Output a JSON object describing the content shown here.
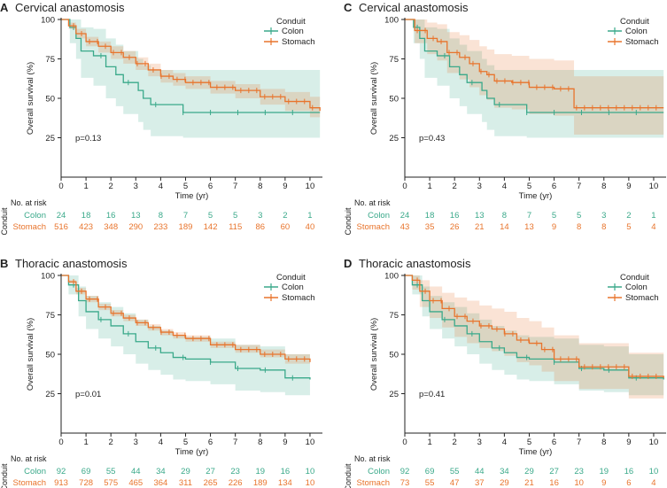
{
  "colors": {
    "colon": "#3aa98a",
    "stomach": "#e8742c",
    "axis": "#222222",
    "text": "#222222"
  },
  "chart_data": [
    {
      "type": "line",
      "letter": "A",
      "title": "Cervical anastomosis",
      "xlabel": "Time (yr)",
      "ylabel": "Overall survival (%)",
      "xlim": [
        0,
        10.5
      ],
      "ylim": [
        0,
        100
      ],
      "xticks": [
        0,
        1,
        2,
        3,
        4,
        5,
        6,
        7,
        8,
        9,
        10
      ],
      "yticks": [
        25,
        50,
        75,
        100
      ],
      "legend_title": "Conduit",
      "pvalue": "p=0.13",
      "risk_title": "No. at risk",
      "risk_side_label": "Conduit",
      "series": [
        {
          "name": "Colon",
          "color_key": "colon",
          "x": [
            0,
            0.35,
            0.6,
            0.8,
            1.3,
            1.8,
            2.2,
            2.5,
            3.1,
            3.3,
            3.6,
            4.9,
            10.4
          ],
          "y": [
            100,
            95,
            88,
            80,
            77,
            70,
            65,
            60,
            55,
            50,
            46,
            41,
            41
          ],
          "lo": [
            100,
            85,
            75,
            63,
            58,
            50,
            45,
            40,
            35,
            30,
            26,
            25,
            25
          ],
          "hi": [
            100,
            100,
            100,
            95,
            94,
            88,
            84,
            80,
            75,
            71,
            68,
            68,
            68
          ],
          "risk": [
            24,
            18,
            16,
            13,
            8,
            7,
            5,
            5,
            3,
            2,
            1
          ]
        },
        {
          "name": "Stomach",
          "color_key": "stomach",
          "x": [
            0,
            0.3,
            0.6,
            1,
            1.5,
            2,
            2.5,
            3,
            3.5,
            4,
            4.5,
            5,
            6,
            7,
            8,
            9,
            10,
            10.4
          ],
          "y": [
            100,
            96,
            91,
            86,
            83,
            79,
            76,
            72,
            68,
            64,
            62,
            60,
            57,
            55,
            51,
            48,
            44,
            42
          ],
          "lo": [
            100,
            94,
            88,
            83,
            79,
            75,
            72,
            68,
            64,
            60,
            58,
            56,
            53,
            50,
            46,
            42,
            38,
            36
          ],
          "hi": [
            100,
            98,
            94,
            89,
            86,
            83,
            80,
            76,
            72,
            68,
            66,
            64,
            61,
            59,
            56,
            54,
            51,
            49
          ],
          "risk": [
            516,
            423,
            348,
            290,
            233,
            189,
            142,
            115,
            86,
            60,
            40
          ]
        }
      ]
    },
    {
      "type": "line",
      "letter": "C",
      "title": "Cervical anastomosis",
      "xlabel": "Time (yr)",
      "ylabel": "Overall survival (%)",
      "xlim": [
        0,
        10.5
      ],
      "ylim": [
        0,
        100
      ],
      "xticks": [
        0,
        1,
        2,
        3,
        4,
        5,
        6,
        7,
        8,
        9,
        10
      ],
      "yticks": [
        25,
        50,
        75,
        100
      ],
      "legend_title": "Conduit",
      "pvalue": "p=0.43",
      "risk_title": "No. at risk",
      "risk_side_label": "Conduit",
      "series": [
        {
          "name": "Colon",
          "color_key": "colon",
          "x": [
            0,
            0.35,
            0.6,
            0.8,
            1.3,
            1.8,
            2.2,
            2.5,
            3.1,
            3.3,
            3.6,
            4.9,
            10.4
          ],
          "y": [
            100,
            95,
            88,
            80,
            77,
            70,
            65,
            60,
            55,
            50,
            46,
            41,
            41
          ],
          "lo": [
            100,
            85,
            75,
            63,
            58,
            50,
            45,
            40,
            35,
            30,
            26,
            25,
            25
          ],
          "hi": [
            100,
            100,
            100,
            95,
            94,
            88,
            84,
            80,
            75,
            71,
            68,
            68,
            68
          ],
          "risk": [
            24,
            18,
            16,
            13,
            8,
            7,
            5,
            5,
            3,
            2,
            1
          ]
        },
        {
          "name": "Stomach",
          "color_key": "stomach",
          "x": [
            0,
            0.4,
            0.9,
            1.3,
            1.7,
            2.2,
            2.6,
            3,
            3.3,
            3.6,
            4.3,
            5,
            6,
            6.8,
            8.3,
            10.4
          ],
          "y": [
            100,
            93,
            88,
            86,
            79,
            76,
            72,
            67,
            65,
            61,
            60,
            57,
            56,
            44,
            44,
            44
          ],
          "lo": [
            100,
            85,
            78,
            74,
            66,
            62,
            57,
            52,
            49,
            44,
            43,
            40,
            39,
            27,
            27,
            27
          ],
          "hi": [
            100,
            100,
            98,
            97,
            92,
            90,
            87,
            83,
            81,
            78,
            77,
            75,
            74,
            64,
            64,
            64
          ],
          "risk": [
            43,
            35,
            26,
            21,
            14,
            13,
            9,
            8,
            8,
            5,
            4
          ]
        }
      ]
    },
    {
      "type": "line",
      "letter": "B",
      "title": "Thoracic anastomosis",
      "xlabel": "Time (yr)",
      "ylabel": "Overall survival (%)",
      "xlim": [
        0,
        10.5
      ],
      "ylim": [
        0,
        100
      ],
      "xticks": [
        0,
        1,
        2,
        3,
        4,
        5,
        6,
        7,
        8,
        9,
        10
      ],
      "yticks": [
        25,
        50,
        75,
        100
      ],
      "legend_title": "Conduit",
      "pvalue": "p=0.01",
      "risk_title": "No. at risk",
      "risk_side_label": "Conduit",
      "series": [
        {
          "name": "Colon",
          "color_key": "colon",
          "x": [
            0,
            0.3,
            0.7,
            1,
            1.5,
            2,
            2.5,
            3,
            3.5,
            4,
            4.5,
            5,
            6,
            7,
            8,
            9,
            10
          ],
          "y": [
            100,
            94,
            84,
            77,
            72,
            68,
            63,
            58,
            54,
            51,
            48,
            47,
            45,
            41,
            40,
            35,
            34
          ],
          "lo": [
            100,
            88,
            74,
            66,
            60,
            55,
            50,
            44,
            40,
            37,
            34,
            33,
            31,
            27,
            26,
            24,
            24
          ],
          "hi": [
            100,
            100,
            93,
            87,
            83,
            80,
            76,
            72,
            68,
            65,
            62,
            61,
            60,
            56,
            55,
            50,
            49
          ],
          "risk": [
            92,
            69,
            55,
            44,
            34,
            29,
            27,
            23,
            19,
            16,
            10
          ]
        },
        {
          "name": "Stomach",
          "color_key": "stomach",
          "x": [
            0,
            0.3,
            0.6,
            1,
            1.5,
            2,
            2.5,
            3,
            3.5,
            4,
            4.5,
            5,
            6,
            7,
            8,
            9,
            10
          ],
          "y": [
            100,
            96,
            90,
            85,
            80,
            76,
            73,
            70,
            67,
            64,
            62,
            60,
            56,
            53,
            50,
            47,
            45
          ],
          "lo": [
            100,
            95,
            88,
            83,
            78,
            74,
            71,
            68,
            65,
            62,
            60,
            58,
            54,
            51,
            48,
            44,
            42
          ],
          "hi": [
            100,
            97,
            92,
            87,
            82,
            78,
            75,
            72,
            69,
            66,
            64,
            62,
            58,
            56,
            53,
            50,
            48
          ],
          "risk": [
            913,
            728,
            575,
            465,
            364,
            311,
            265,
            226,
            189,
            134,
            10
          ]
        }
      ]
    },
    {
      "type": "line",
      "letter": "D",
      "title": "Thoracic anastomosis",
      "xlabel": "Time (yr)",
      "ylabel": "Overall survival (%)",
      "xlim": [
        0,
        10.5
      ],
      "ylim": [
        0,
        100
      ],
      "xticks": [
        0,
        1,
        2,
        3,
        4,
        5,
        6,
        7,
        8,
        9,
        10
      ],
      "yticks": [
        25,
        50,
        75,
        100
      ],
      "legend_title": "Conduit",
      "pvalue": "p=0.41",
      "risk_title": "No. at risk",
      "risk_side_label": "Conduit",
      "series": [
        {
          "name": "Colon",
          "color_key": "colon",
          "x": [
            0,
            0.3,
            0.7,
            1,
            1.5,
            2,
            2.5,
            3,
            3.5,
            4,
            4.5,
            5,
            6,
            7,
            8,
            9,
            10.4
          ],
          "y": [
            100,
            94,
            84,
            77,
            72,
            68,
            63,
            58,
            54,
            51,
            48,
            47,
            45,
            41,
            40,
            35,
            34
          ],
          "lo": [
            100,
            88,
            74,
            66,
            60,
            55,
            50,
            44,
            40,
            37,
            34,
            33,
            31,
            27,
            26,
            24,
            24
          ],
          "hi": [
            100,
            100,
            93,
            87,
            83,
            80,
            76,
            72,
            68,
            65,
            62,
            61,
            60,
            56,
            55,
            50,
            49
          ],
          "risk": [
            92,
            69,
            55,
            44,
            34,
            29,
            27,
            23,
            19,
            16,
            10
          ]
        },
        {
          "name": "Stomach",
          "color_key": "stomach",
          "x": [
            0,
            0.3,
            0.6,
            1,
            1.5,
            2,
            2.5,
            3,
            3.5,
            4,
            4.5,
            5,
            5.5,
            6,
            7,
            8,
            9,
            10.4
          ],
          "y": [
            100,
            97,
            90,
            84,
            79,
            74,
            71,
            68,
            66,
            63,
            59,
            57,
            53,
            47,
            42,
            42,
            36,
            35
          ],
          "lo": [
            100,
            91,
            80,
            73,
            67,
            61,
            57,
            54,
            52,
            49,
            45,
            43,
            39,
            33,
            28,
            28,
            22,
            21
          ],
          "hi": [
            100,
            100,
            97,
            93,
            89,
            86,
            84,
            81,
            79,
            77,
            73,
            71,
            67,
            62,
            57,
            57,
            51,
            50
          ],
          "risk": [
            73,
            55,
            47,
            37,
            29,
            21,
            16,
            10,
            9,
            6,
            4
          ]
        }
      ]
    }
  ]
}
